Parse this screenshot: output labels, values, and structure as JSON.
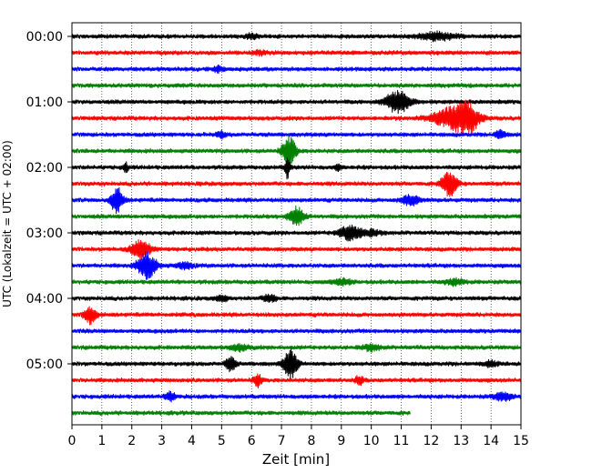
{
  "chart_data": {
    "type": "line",
    "title": "",
    "xlabel": "Zeit  [min]",
    "ylabel": "UTC (Lokalzeit = UTC + 02:00)",
    "xlim": [
      0,
      15
    ],
    "x_ticks": [
      "0",
      "1",
      "2",
      "3",
      "4",
      "5",
      "6",
      "7",
      "8",
      "9",
      "10",
      "11",
      "12",
      "13",
      "14",
      "15"
    ],
    "y_tick_labels": [
      "00:00",
      "01:00",
      "02:00",
      "03:00",
      "04:00",
      "05:00"
    ],
    "y_tick_rows": [
      0,
      4,
      8,
      12,
      16,
      20
    ],
    "trace_interval_min": 15,
    "grid": "vertical dotted",
    "colors": [
      "#000000",
      "#ff0000",
      "#0000ff",
      "#008000"
    ],
    "traces": [
      {
        "start": "00:00",
        "color": "#000000",
        "end_min": 15,
        "events": [
          {
            "t": 12.2,
            "amp": 4,
            "w": 0.6
          },
          {
            "t": 6.0,
            "amp": 2,
            "w": 0.2
          }
        ]
      },
      {
        "start": "00:15",
        "color": "#ff0000",
        "end_min": 15,
        "events": [
          {
            "t": 6.3,
            "amp": 2,
            "w": 0.2
          }
        ]
      },
      {
        "start": "00:30",
        "color": "#0000ff",
        "end_min": 15,
        "events": [
          {
            "t": 4.9,
            "amp": 3,
            "w": 0.15
          }
        ]
      },
      {
        "start": "00:45",
        "color": "#008000",
        "end_min": 15,
        "events": []
      },
      {
        "start": "01:00",
        "color": "#000000",
        "end_min": 15,
        "events": [
          {
            "t": 10.9,
            "amp": 12,
            "w": 0.4
          }
        ]
      },
      {
        "start": "01:15",
        "color": "#ff0000",
        "end_min": 15,
        "events": [
          {
            "t": 12.6,
            "amp": 9,
            "w": 0.6
          },
          {
            "t": 13.2,
            "amp": 15,
            "w": 0.4
          }
        ]
      },
      {
        "start": "01:30",
        "color": "#0000ff",
        "end_min": 15,
        "events": [
          {
            "t": 14.3,
            "amp": 5,
            "w": 0.15
          },
          {
            "t": 5.0,
            "amp": 3,
            "w": 0.15
          }
        ]
      },
      {
        "start": "01:45",
        "color": "#008000",
        "end_min": 15,
        "events": [
          {
            "t": 7.25,
            "amp": 16,
            "w": 0.22
          }
        ]
      },
      {
        "start": "02:00",
        "color": "#000000",
        "end_min": 15,
        "events": [
          {
            "t": 1.8,
            "amp": 5,
            "w": 0.08
          },
          {
            "t": 8.9,
            "amp": 3,
            "w": 0.1
          },
          {
            "t": 7.2,
            "amp": 12,
            "w": 0.08
          }
        ]
      },
      {
        "start": "02:15",
        "color": "#ff0000",
        "end_min": 15,
        "events": [
          {
            "t": 12.6,
            "amp": 13,
            "w": 0.25
          }
        ]
      },
      {
        "start": "02:30",
        "color": "#0000ff",
        "end_min": 15,
        "events": [
          {
            "t": 1.5,
            "amp": 13,
            "w": 0.2
          },
          {
            "t": 11.3,
            "amp": 5,
            "w": 0.3
          }
        ]
      },
      {
        "start": "02:45",
        "color": "#008000",
        "end_min": 15,
        "events": [
          {
            "t": 7.5,
            "amp": 10,
            "w": 0.25
          }
        ]
      },
      {
        "start": "03:00",
        "color": "#000000",
        "end_min": 15,
        "events": [
          {
            "t": 9.3,
            "amp": 8,
            "w": 0.35
          },
          {
            "t": 10.0,
            "amp": 3,
            "w": 0.3
          }
        ]
      },
      {
        "start": "03:15",
        "color": "#ff0000",
        "end_min": 15,
        "events": [
          {
            "t": 2.3,
            "amp": 10,
            "w": 0.3
          }
        ]
      },
      {
        "start": "03:30",
        "color": "#0000ff",
        "end_min": 15,
        "events": [
          {
            "t": 2.5,
            "amp": 14,
            "w": 0.3
          },
          {
            "t": 3.8,
            "amp": 3,
            "w": 0.3
          }
        ]
      },
      {
        "start": "03:45",
        "color": "#008000",
        "end_min": 15,
        "events": [
          {
            "t": 9.0,
            "amp": 3,
            "w": 0.3
          },
          {
            "t": 12.8,
            "amp": 3,
            "w": 0.3
          }
        ]
      },
      {
        "start": "04:00",
        "color": "#000000",
        "end_min": 15,
        "events": [
          {
            "t": 6.6,
            "amp": 4,
            "w": 0.2
          },
          {
            "t": 5.0,
            "amp": 3,
            "w": 0.2
          }
        ]
      },
      {
        "start": "04:15",
        "color": "#ff0000",
        "end_min": 15,
        "events": [
          {
            "t": 0.6,
            "amp": 10,
            "w": 0.2
          }
        ]
      },
      {
        "start": "04:30",
        "color": "#0000ff",
        "end_min": 15,
        "events": []
      },
      {
        "start": "04:45",
        "color": "#008000",
        "end_min": 15,
        "events": [
          {
            "t": 5.6,
            "amp": 3,
            "w": 0.3
          },
          {
            "t": 10.0,
            "amp": 3,
            "w": 0.3
          }
        ]
      },
      {
        "start": "05:00",
        "color": "#000000",
        "end_min": 15,
        "events": [
          {
            "t": 5.3,
            "amp": 9,
            "w": 0.15
          },
          {
            "t": 7.3,
            "amp": 16,
            "w": 0.22
          },
          {
            "t": 14.0,
            "amp": 3,
            "w": 0.2
          }
        ]
      },
      {
        "start": "05:15",
        "color": "#ff0000",
        "end_min": 15,
        "events": [
          {
            "t": 6.2,
            "amp": 7,
            "w": 0.12
          },
          {
            "t": 9.6,
            "amp": 5,
            "w": 0.12
          }
        ]
      },
      {
        "start": "05:30",
        "color": "#0000ff",
        "end_min": 15,
        "events": [
          {
            "t": 3.3,
            "amp": 5,
            "w": 0.15
          },
          {
            "t": 14.4,
            "amp": 4,
            "w": 0.3
          }
        ]
      },
      {
        "start": "05:45",
        "color": "#008000",
        "end_min": 11.3,
        "events": []
      }
    ]
  }
}
